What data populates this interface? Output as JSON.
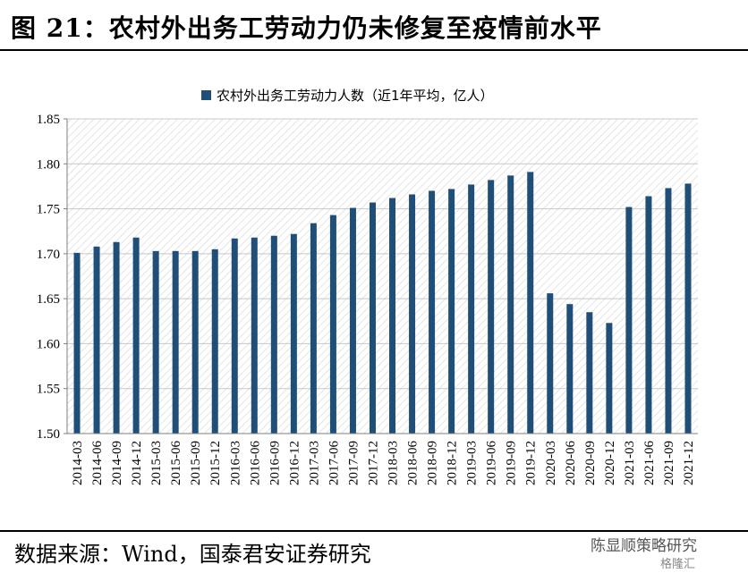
{
  "header": {
    "title": "图 21：农村外出务工劳动力仍未修复至疫情前水平"
  },
  "footer": {
    "source": "数据来源：Wind，国泰君安证券研究",
    "watermark": "陈显顺策略研究",
    "watermark_sub": "格隆汇"
  },
  "colors": {
    "bar": "#1f4e79",
    "plot_bg": "#ffffff",
    "hatch": "#d9d9d9"
  },
  "chart_data": {
    "type": "bar",
    "categories": [
      "2014-03",
      "2014-06",
      "2014-09",
      "2014-12",
      "2015-03",
      "2015-06",
      "2015-09",
      "2015-12",
      "2016-03",
      "2016-06",
      "2016-09",
      "2016-12",
      "2017-03",
      "2017-06",
      "2017-09",
      "2017-12",
      "2018-03",
      "2018-06",
      "2018-09",
      "2018-12",
      "2019-03",
      "2019-06",
      "2019-09",
      "2019-12",
      "2020-03",
      "2020-06",
      "2020-09",
      "2020-12",
      "2021-03",
      "2021-06",
      "2021-09",
      "2021-12"
    ],
    "series": [
      {
        "name": "农村外出务工劳动力人数（近1年平均，亿人）",
        "values": [
          1.701,
          1.708,
          1.713,
          1.718,
          1.703,
          1.703,
          1.703,
          1.705,
          1.717,
          1.718,
          1.72,
          1.722,
          1.734,
          1.743,
          1.751,
          1.757,
          1.762,
          1.766,
          1.77,
          1.772,
          1.777,
          1.782,
          1.787,
          1.791,
          1.656,
          1.644,
          1.635,
          1.623,
          1.752,
          1.764,
          1.773,
          1.778
        ]
      }
    ],
    "ylim": [
      1.5,
      1.85
    ],
    "yticks": [
      "1.50",
      "1.55",
      "1.60",
      "1.65",
      "1.70",
      "1.75",
      "1.80",
      "1.85"
    ],
    "grid": true,
    "legend": "top-center"
  }
}
